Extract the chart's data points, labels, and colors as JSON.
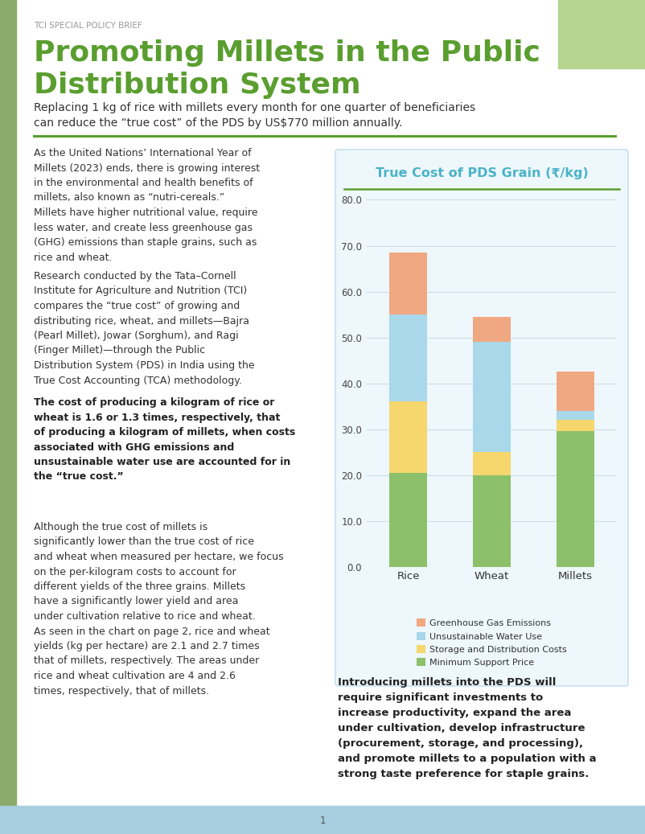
{
  "title": "True Cost of PDS Grain (₹/kg)",
  "categories": [
    "Rice",
    "Wheat",
    "Millets"
  ],
  "msp": [
    20.5,
    20.0,
    29.5
  ],
  "storage": [
    15.5,
    5.0,
    2.5
  ],
  "water": [
    19.0,
    24.0,
    2.0
  ],
  "ghg": [
    13.5,
    5.5,
    8.5
  ],
  "colors": {
    "msp": "#8dc06a",
    "storage": "#f5d76e",
    "water": "#a8d8ea",
    "ghg": "#f0a882"
  },
  "ylim": [
    0,
    80
  ],
  "yticks": [
    0.0,
    10.0,
    20.0,
    30.0,
    40.0,
    50.0,
    60.0,
    70.0,
    80.0
  ],
  "title_color": "#4ab3c8",
  "title_line_color": "#5a9e2f",
  "chart_bg": "#eef7fb",
  "chart_border": "#bddced",
  "bar_width": 0.45,
  "page_bg": "#ffffff",
  "left_strip_color": "#8aab6b",
  "top_right_color": "#b5d48e",
  "footer_color": "#a8cfdf",
  "header_label": "TCI SPECIAL POLICY BRIEF",
  "header_color": "#999999",
  "main_title_line1": "Promoting Millets in the Public",
  "main_title_line2": "Distribution System",
  "title_green": "#5a9e2f",
  "subtitle": "Replacing 1 kg of rice with millets every month for one quarter of beneficiaries\ncan reduce the “true cost” of the PDS by US$770 million annually.",
  "divider_color": "#5a9e2f",
  "body_text1": "As the United Nations’ International Year of Millets (2023) ends, there is growing interest in the environmental and health benefits of millets, also known as “nutri-cereals.” Millets have higher nutritional value, require less water, and create less greenhouse gas (GHG) emissions than staple grains, such as rice and wheat.",
  "body_text2": "Research conducted by the Tata–Cornell Institute for Agriculture and Nutrition (TCI) compares the “true cost” of growing and distributing rice, wheat, and millets—Bajra (Pearl Millet), Jowar (Sorghum), and Ragi (Finger Millet)—through the Public Distribution System (PDS) in India using the True Cost Accounting (TCA) methodology.",
  "bold_text": "The cost of producing a kilogram of rice or wheat is 1.6 or 1.3 times, respectively, that of producing a kilogram of millets, when costs associated with GHG emissions and unsustainable water use are accounted for in the “true cost.”",
  "body_text3": "Although the true cost of millets is significantly lower than the true cost of rice and wheat when measured per hectare, we focus on the per-kilogram costs to account for different yields of the three grains. Millets have a significantly lower yield and area under cultivation relative to rice and wheat. As seen in the chart on page 2, rice and wheat yields (kg per hectare) are 2.1 and 2.7 times that of millets, respectively. The areas under rice and wheat cultivation are 4 and 2.6 times, respectively, that of millets.",
  "bottom_bold_text": "Introducing millets into the PDS will require significant investments to increase productivity, expand the area under cultivation, develop infrastructure (procurement, storage, and processing), and promote millets to a population with a strong taste preference for staple grains.",
  "page_number": "1",
  "legend_labels": [
    "Greenhouse Gas Emissions",
    "Unsustainable Water Use",
    "Storage and Distribution Costs",
    "Minimum Support Price"
  ]
}
